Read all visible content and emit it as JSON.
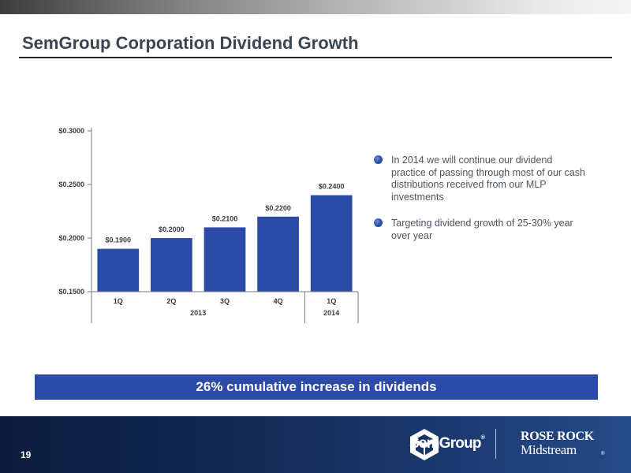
{
  "slide": {
    "title": "SemGroup Corporation Dividend Growth",
    "page_number": "19"
  },
  "chart_data": {
    "type": "bar",
    "categories": [
      "1Q",
      "2Q",
      "3Q",
      "4Q",
      "1Q"
    ],
    "groups": [
      {
        "label": "2013",
        "categories": [
          "1Q",
          "2Q",
          "3Q",
          "4Q"
        ]
      },
      {
        "label": "2014",
        "categories": [
          "1Q"
        ]
      }
    ],
    "values": [
      0.19,
      0.2,
      0.21,
      0.22,
      0.24
    ],
    "data_labels": [
      "$0.1900",
      "$0.2000",
      "$0.2100",
      "$0.2200",
      "$0.2400"
    ],
    "yticks": [
      0.15,
      0.2,
      0.25,
      0.3
    ],
    "ytick_labels": [
      "$0.1500",
      "$0.2000",
      "$0.2500",
      "$0.3000"
    ],
    "ylim": [
      0.15,
      0.3
    ],
    "title": "",
    "xlabel": "",
    "ylabel": "",
    "bar_color": "#2c4aa8",
    "grid": false
  },
  "bullets": [
    "In 2014 we will continue our dividend practice of passing through most of our cash distributions received from our MLP investments",
    "Targeting dividend growth of 25-30% year over year"
  ],
  "banner": {
    "text": "26% cumulative increase in dividends"
  },
  "logos": {
    "semgroup": "SemGroup",
    "semgroup_mark": "®",
    "rose_rock_line1": "ROSE ROCK",
    "rose_rock_line2": "Midstream",
    "rose_rock_mark": "®",
    "semgroup_icon": "semgroup-emblem-icon"
  },
  "colors": {
    "accent": "#2c4aa8",
    "footer": "#132a56",
    "title": "#3a4550"
  }
}
